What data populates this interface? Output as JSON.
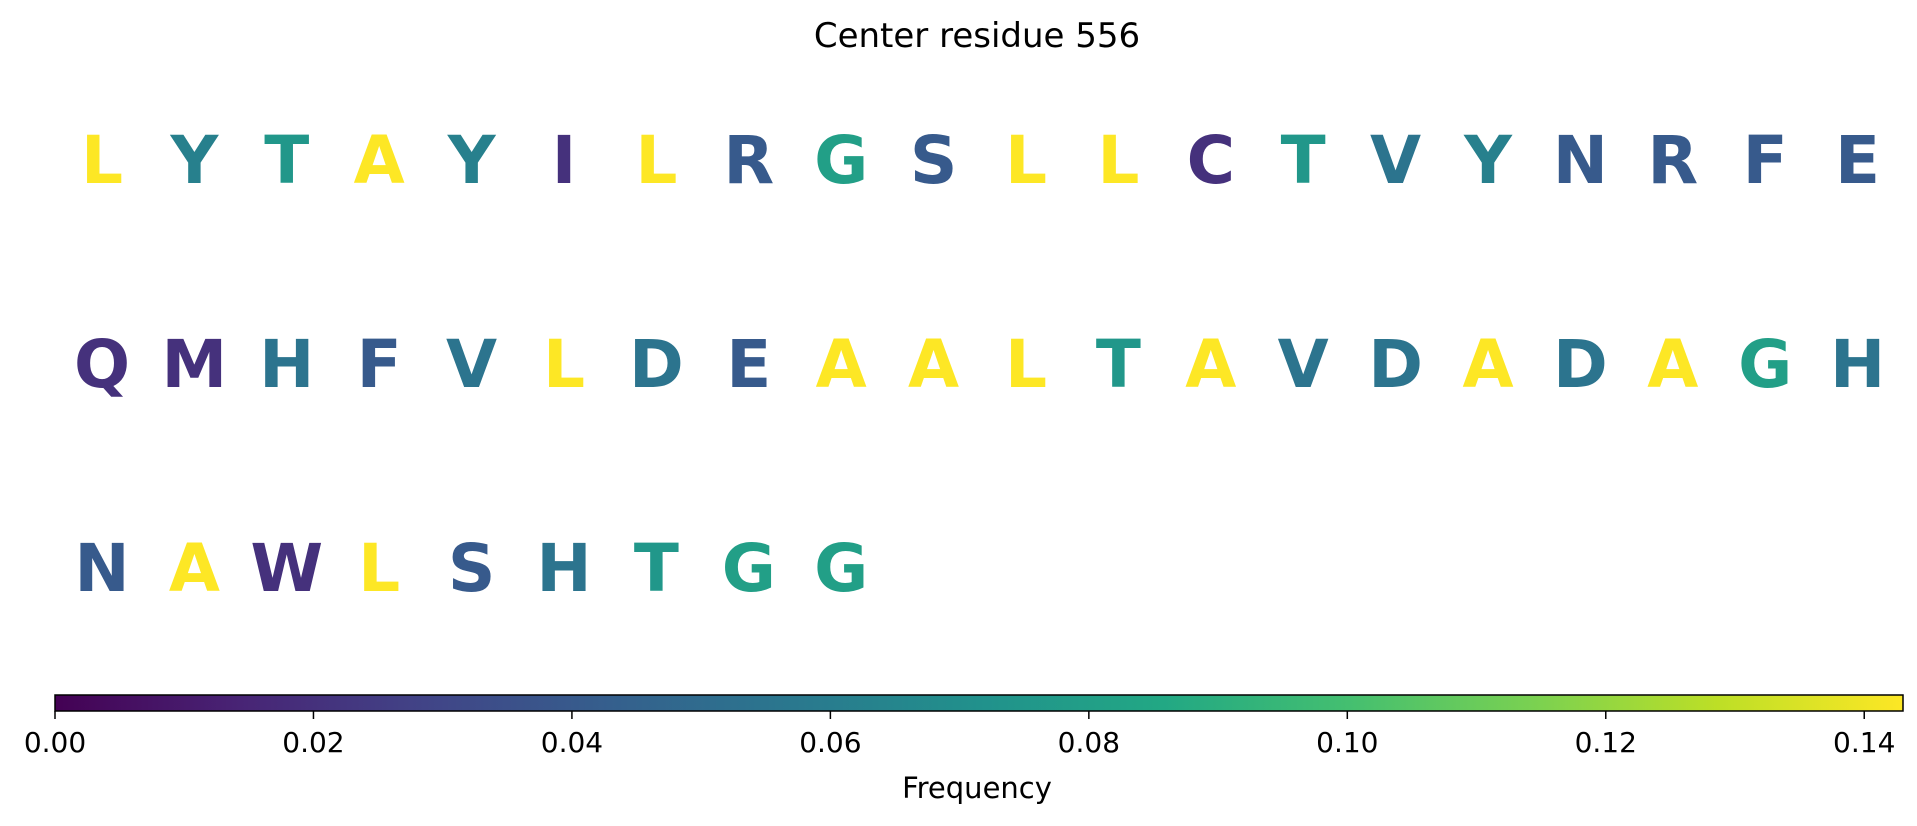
{
  "chart_data": {
    "type": "heatmap",
    "title": "Center residue 556",
    "colorbar": {
      "label": "Frequency",
      "range": [
        0.0,
        0.143
      ],
      "ticks": [
        0.0,
        0.02,
        0.04,
        0.06,
        0.08,
        0.1,
        0.12,
        0.14
      ],
      "tick_labels": [
        "0.00",
        "0.02",
        "0.04",
        "0.06",
        "0.08",
        "0.10",
        "0.12",
        "0.14"
      ],
      "colormap": "viridis",
      "orientation": "horizontal",
      "placement": "bottom"
    },
    "columns_per_row": 20,
    "residues": [
      {
        "letter": "L",
        "value": 0.143
      },
      {
        "letter": "Y",
        "value": 0.062
      },
      {
        "letter": "T",
        "value": 0.075
      },
      {
        "letter": "A",
        "value": 0.143
      },
      {
        "letter": "Y",
        "value": 0.062
      },
      {
        "letter": "I",
        "value": 0.02
      },
      {
        "letter": "L",
        "value": 0.143
      },
      {
        "letter": "R",
        "value": 0.04
      },
      {
        "letter": "G",
        "value": 0.08
      },
      {
        "letter": "S",
        "value": 0.04
      },
      {
        "letter": "L",
        "value": 0.143
      },
      {
        "letter": "L",
        "value": 0.143
      },
      {
        "letter": "C",
        "value": 0.02
      },
      {
        "letter": "T",
        "value": 0.075
      },
      {
        "letter": "V",
        "value": 0.055
      },
      {
        "letter": "Y",
        "value": 0.062
      },
      {
        "letter": "N",
        "value": 0.04
      },
      {
        "letter": "R",
        "value": 0.04
      },
      {
        "letter": "F",
        "value": 0.04
      },
      {
        "letter": "E",
        "value": 0.04
      },
      {
        "letter": "Q",
        "value": 0.02
      },
      {
        "letter": "M",
        "value": 0.02
      },
      {
        "letter": "H",
        "value": 0.055
      },
      {
        "letter": "F",
        "value": 0.04
      },
      {
        "letter": "V",
        "value": 0.055
      },
      {
        "letter": "L",
        "value": 0.143
      },
      {
        "letter": "D",
        "value": 0.055
      },
      {
        "letter": "E",
        "value": 0.04
      },
      {
        "letter": "A",
        "value": 0.143
      },
      {
        "letter": "A",
        "value": 0.143
      },
      {
        "letter": "L",
        "value": 0.143
      },
      {
        "letter": "T",
        "value": 0.075
      },
      {
        "letter": "A",
        "value": 0.143
      },
      {
        "letter": "V",
        "value": 0.055
      },
      {
        "letter": "D",
        "value": 0.055
      },
      {
        "letter": "A",
        "value": 0.143
      },
      {
        "letter": "D",
        "value": 0.055
      },
      {
        "letter": "A",
        "value": 0.143
      },
      {
        "letter": "G",
        "value": 0.08
      },
      {
        "letter": "H",
        "value": 0.055
      },
      {
        "letter": "N",
        "value": 0.04
      },
      {
        "letter": "A",
        "value": 0.143
      },
      {
        "letter": "W",
        "value": 0.02
      },
      {
        "letter": "L",
        "value": 0.143
      },
      {
        "letter": "S",
        "value": 0.04
      },
      {
        "letter": "H",
        "value": 0.055
      },
      {
        "letter": "T",
        "value": 0.075
      },
      {
        "letter": "G",
        "value": 0.08
      },
      {
        "letter": "G",
        "value": 0.08
      }
    ]
  }
}
